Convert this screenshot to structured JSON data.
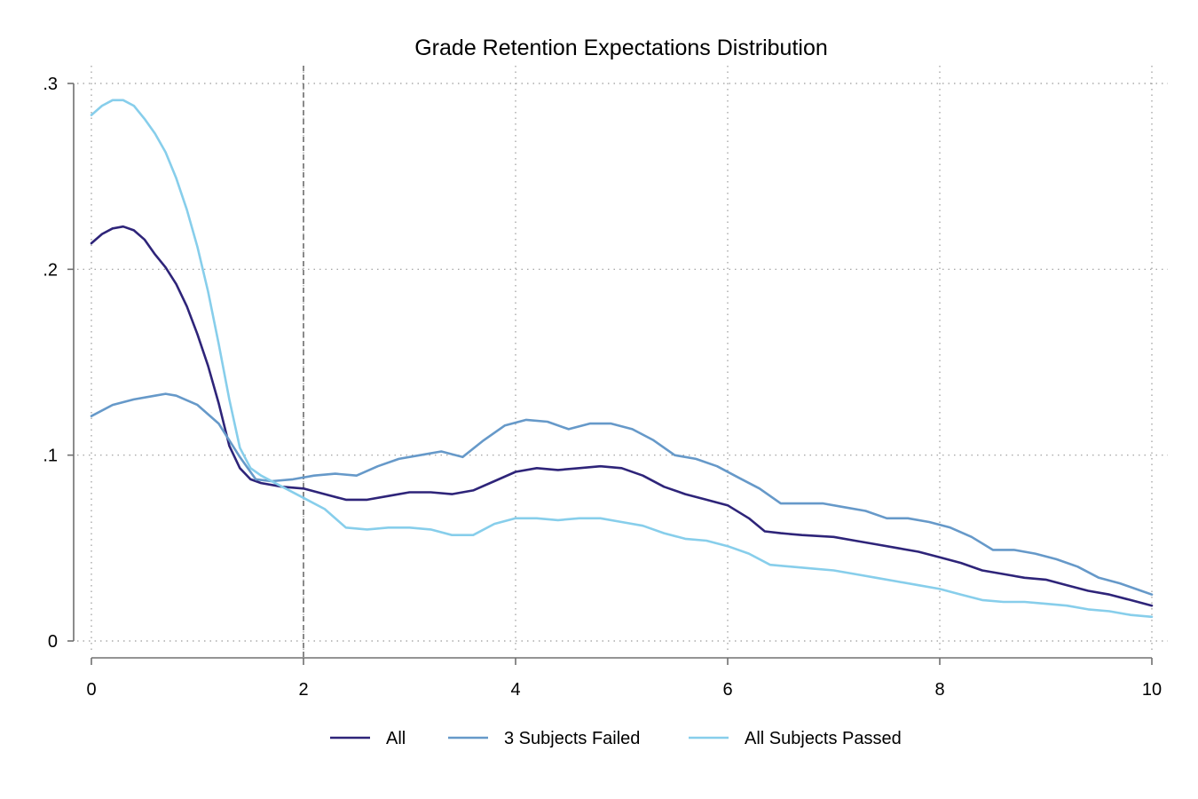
{
  "chart_data": {
    "type": "line",
    "title": "Grade Retention Expectations Distribution",
    "xlabel": "",
    "ylabel": "",
    "xlim": [
      0,
      10
    ],
    "ylim": [
      0,
      0.3
    ],
    "x_ticks": [
      0,
      2,
      4,
      6,
      8,
      10
    ],
    "x_tick_labels": [
      "0",
      "2",
      "4",
      "6",
      "8",
      "10"
    ],
    "y_ticks": [
      0,
      0.1,
      0.2,
      0.3
    ],
    "y_tick_labels": [
      "0",
      ".1",
      ".2",
      ".3"
    ],
    "grid": "dotted",
    "reference_line_x": 2,
    "legend_position": "bottom",
    "series": [
      {
        "name": "All",
        "color": "#2e2479",
        "points": [
          [
            0,
            0.214
          ],
          [
            0.1,
            0.219
          ],
          [
            0.2,
            0.222
          ],
          [
            0.3,
            0.223
          ],
          [
            0.4,
            0.221
          ],
          [
            0.5,
            0.216
          ],
          [
            0.6,
            0.208
          ],
          [
            0.7,
            0.201
          ],
          [
            0.8,
            0.192
          ],
          [
            0.9,
            0.18
          ],
          [
            1.0,
            0.165
          ],
          [
            1.1,
            0.148
          ],
          [
            1.2,
            0.128
          ],
          [
            1.3,
            0.105
          ],
          [
            1.4,
            0.093
          ],
          [
            1.5,
            0.087
          ],
          [
            1.6,
            0.085
          ],
          [
            1.8,
            0.083
          ],
          [
            2.0,
            0.082
          ],
          [
            2.2,
            0.079
          ],
          [
            2.4,
            0.076
          ],
          [
            2.6,
            0.076
          ],
          [
            2.8,
            0.078
          ],
          [
            3.0,
            0.08
          ],
          [
            3.2,
            0.08
          ],
          [
            3.4,
            0.079
          ],
          [
            3.6,
            0.081
          ],
          [
            3.8,
            0.086
          ],
          [
            4.0,
            0.091
          ],
          [
            4.2,
            0.093
          ],
          [
            4.4,
            0.092
          ],
          [
            4.6,
            0.093
          ],
          [
            4.8,
            0.094
          ],
          [
            5.0,
            0.093
          ],
          [
            5.2,
            0.089
          ],
          [
            5.4,
            0.083
          ],
          [
            5.6,
            0.079
          ],
          [
            5.8,
            0.076
          ],
          [
            6.0,
            0.073
          ],
          [
            6.2,
            0.066
          ],
          [
            6.35,
            0.059
          ],
          [
            6.5,
            0.058
          ],
          [
            6.7,
            0.057
          ],
          [
            7.0,
            0.056
          ],
          [
            7.2,
            0.054
          ],
          [
            7.4,
            0.052
          ],
          [
            7.6,
            0.05
          ],
          [
            7.8,
            0.048
          ],
          [
            8.0,
            0.045
          ],
          [
            8.2,
            0.042
          ],
          [
            8.4,
            0.038
          ],
          [
            8.6,
            0.036
          ],
          [
            8.8,
            0.034
          ],
          [
            9.0,
            0.033
          ],
          [
            9.2,
            0.03
          ],
          [
            9.4,
            0.027
          ],
          [
            9.6,
            0.025
          ],
          [
            9.8,
            0.022
          ],
          [
            10.0,
            0.019
          ]
        ]
      },
      {
        "name": "3 Subjects Failed",
        "color": "#6699c9",
        "points": [
          [
            0,
            0.121
          ],
          [
            0.2,
            0.127
          ],
          [
            0.4,
            0.13
          ],
          [
            0.6,
            0.132
          ],
          [
            0.7,
            0.133
          ],
          [
            0.8,
            0.132
          ],
          [
            1.0,
            0.127
          ],
          [
            1.2,
            0.117
          ],
          [
            1.4,
            0.099
          ],
          [
            1.55,
            0.087
          ],
          [
            1.7,
            0.086
          ],
          [
            1.9,
            0.087
          ],
          [
            2.1,
            0.089
          ],
          [
            2.3,
            0.09
          ],
          [
            2.5,
            0.089
          ],
          [
            2.7,
            0.094
          ],
          [
            2.9,
            0.098
          ],
          [
            3.1,
            0.1
          ],
          [
            3.3,
            0.102
          ],
          [
            3.5,
            0.099
          ],
          [
            3.7,
            0.108
          ],
          [
            3.9,
            0.116
          ],
          [
            4.1,
            0.119
          ],
          [
            4.3,
            0.118
          ],
          [
            4.5,
            0.114
          ],
          [
            4.7,
            0.117
          ],
          [
            4.9,
            0.117
          ],
          [
            5.1,
            0.114
          ],
          [
            5.3,
            0.108
          ],
          [
            5.5,
            0.1
          ],
          [
            5.7,
            0.098
          ],
          [
            5.9,
            0.094
          ],
          [
            6.1,
            0.088
          ],
          [
            6.3,
            0.082
          ],
          [
            6.5,
            0.074
          ],
          [
            6.7,
            0.074
          ],
          [
            6.9,
            0.074
          ],
          [
            7.1,
            0.072
          ],
          [
            7.3,
            0.07
          ],
          [
            7.5,
            0.066
          ],
          [
            7.7,
            0.066
          ],
          [
            7.9,
            0.064
          ],
          [
            8.1,
            0.061
          ],
          [
            8.3,
            0.056
          ],
          [
            8.5,
            0.049
          ],
          [
            8.7,
            0.049
          ],
          [
            8.9,
            0.047
          ],
          [
            9.1,
            0.044
          ],
          [
            9.3,
            0.04
          ],
          [
            9.5,
            0.034
          ],
          [
            9.7,
            0.031
          ],
          [
            9.9,
            0.027
          ],
          [
            10.0,
            0.025
          ]
        ]
      },
      {
        "name": "All Subjects Passed",
        "color": "#87ceeb",
        "points": [
          [
            0,
            0.283
          ],
          [
            0.1,
            0.288
          ],
          [
            0.2,
            0.291
          ],
          [
            0.3,
            0.291
          ],
          [
            0.4,
            0.288
          ],
          [
            0.5,
            0.281
          ],
          [
            0.6,
            0.273
          ],
          [
            0.7,
            0.263
          ],
          [
            0.8,
            0.249
          ],
          [
            0.9,
            0.232
          ],
          [
            1.0,
            0.212
          ],
          [
            1.1,
            0.188
          ],
          [
            1.2,
            0.16
          ],
          [
            1.3,
            0.13
          ],
          [
            1.4,
            0.104
          ],
          [
            1.5,
            0.093
          ],
          [
            1.6,
            0.089
          ],
          [
            1.8,
            0.083
          ],
          [
            2.0,
            0.077
          ],
          [
            2.2,
            0.071
          ],
          [
            2.4,
            0.061
          ],
          [
            2.6,
            0.06
          ],
          [
            2.8,
            0.061
          ],
          [
            3.0,
            0.061
          ],
          [
            3.2,
            0.06
          ],
          [
            3.4,
            0.057
          ],
          [
            3.6,
            0.057
          ],
          [
            3.8,
            0.063
          ],
          [
            4.0,
            0.066
          ],
          [
            4.2,
            0.066
          ],
          [
            4.4,
            0.065
          ],
          [
            4.6,
            0.066
          ],
          [
            4.8,
            0.066
          ],
          [
            5.0,
            0.064
          ],
          [
            5.2,
            0.062
          ],
          [
            5.4,
            0.058
          ],
          [
            5.6,
            0.055
          ],
          [
            5.8,
            0.054
          ],
          [
            6.0,
            0.051
          ],
          [
            6.2,
            0.047
          ],
          [
            6.4,
            0.041
          ],
          [
            6.6,
            0.04
          ],
          [
            6.8,
            0.039
          ],
          [
            7.0,
            0.038
          ],
          [
            7.2,
            0.036
          ],
          [
            7.4,
            0.034
          ],
          [
            7.6,
            0.032
          ],
          [
            7.8,
            0.03
          ],
          [
            8.0,
            0.028
          ],
          [
            8.2,
            0.025
          ],
          [
            8.4,
            0.022
          ],
          [
            8.6,
            0.021
          ],
          [
            8.8,
            0.021
          ],
          [
            9.0,
            0.02
          ],
          [
            9.2,
            0.019
          ],
          [
            9.4,
            0.017
          ],
          [
            9.6,
            0.016
          ],
          [
            9.8,
            0.014
          ],
          [
            10.0,
            0.013
          ]
        ]
      }
    ]
  }
}
